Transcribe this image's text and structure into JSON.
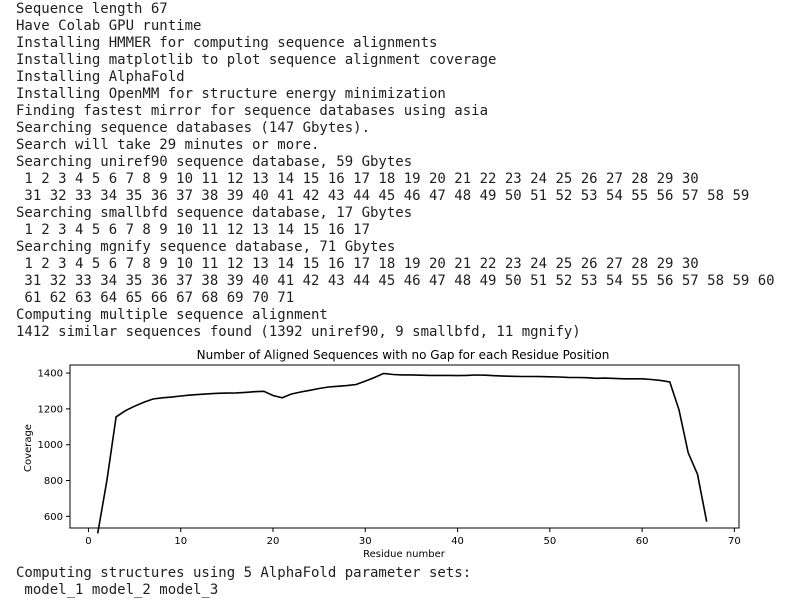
{
  "output_log": {
    "lines": [
      "Sequence length 67",
      "Have Colab GPU runtime",
      "Installing HMMER for computing sequence alignments",
      "Installing matplotlib to plot sequence alignment coverage",
      "Installing AlphaFold",
      "Installing OpenMM for structure energy minimization",
      "Finding fastest mirror for sequence databases using asia",
      "Searching sequence databases (147 Gbytes).",
      "Search will take 29 minutes or more.",
      "Searching uniref90 sequence database, 59 Gbytes",
      " 1 2 3 4 5 6 7 8 9 10 11 12 13 14 15 16 17 18 19 20 21 22 23 24 25 26 27 28 29 30",
      " 31 32 33 34 35 36 37 38 39 40 41 42 43 44 45 46 47 48 49 50 51 52 53 54 55 56 57 58 59",
      "Searching smallbfd sequence database, 17 Gbytes",
      " 1 2 3 4 5 6 7 8 9 10 11 12 13 14 15 16 17",
      "Searching mgnify sequence database, 71 Gbytes",
      " 1 2 3 4 5 6 7 8 9 10 11 12 13 14 15 16 17 18 19 20 21 22 23 24 25 26 27 28 29 30",
      " 31 32 33 34 35 36 37 38 39 40 41 42 43 44 45 46 47 48 49 50 51 52 53 54 55 56 57 58 59 60",
      " 61 62 63 64 65 66 67 68 69 70 71",
      "Computing multiple sequence alignment",
      "1412 similar sequences found (1392 uniref90, 9 smallbfd, 11 mgnify)"
    ],
    "after_chart": [
      "Computing structures using 5 AlphaFold parameter sets:",
      " model_1 model_2 model_3"
    ]
  },
  "chart_data": {
    "type": "line",
    "title": "Number of Aligned Sequences with no Gap for each Residue Position",
    "xlabel": "Residue number",
    "ylabel": "Coverage",
    "xlim": [
      -2,
      70.5
    ],
    "ylim": [
      535,
      1445
    ],
    "xticks": [
      0,
      10,
      20,
      30,
      40,
      50,
      60,
      70
    ],
    "yticks": [
      600,
      800,
      1000,
      1200,
      1400
    ],
    "line_color": "#000000",
    "x": [
      1,
      2,
      3,
      4,
      5,
      6,
      7,
      8,
      9,
      10,
      11,
      12,
      13,
      14,
      15,
      16,
      17,
      18,
      19,
      20,
      21,
      22,
      23,
      24,
      25,
      26,
      27,
      28,
      29,
      30,
      31,
      32,
      33,
      34,
      35,
      36,
      37,
      38,
      39,
      40,
      41,
      42,
      43,
      44,
      45,
      46,
      47,
      48,
      49,
      50,
      51,
      52,
      53,
      54,
      55,
      56,
      57,
      58,
      59,
      60,
      61,
      62,
      63,
      64,
      65,
      66,
      67
    ],
    "y": [
      505,
      800,
      1155,
      1190,
      1215,
      1237,
      1255,
      1262,
      1266,
      1272,
      1277,
      1281,
      1284,
      1287,
      1288,
      1289,
      1292,
      1296,
      1298,
      1275,
      1262,
      1283,
      1294,
      1304,
      1314,
      1322,
      1326,
      1330,
      1336,
      1355,
      1375,
      1398,
      1392,
      1390,
      1390,
      1388,
      1387,
      1387,
      1387,
      1386,
      1387,
      1389,
      1388,
      1385,
      1383,
      1382,
      1381,
      1381,
      1380,
      1379,
      1378,
      1376,
      1375,
      1374,
      1371,
      1372,
      1370,
      1368,
      1368,
      1368,
      1364,
      1359,
      1350,
      1195,
      955,
      835,
      570
    ]
  }
}
